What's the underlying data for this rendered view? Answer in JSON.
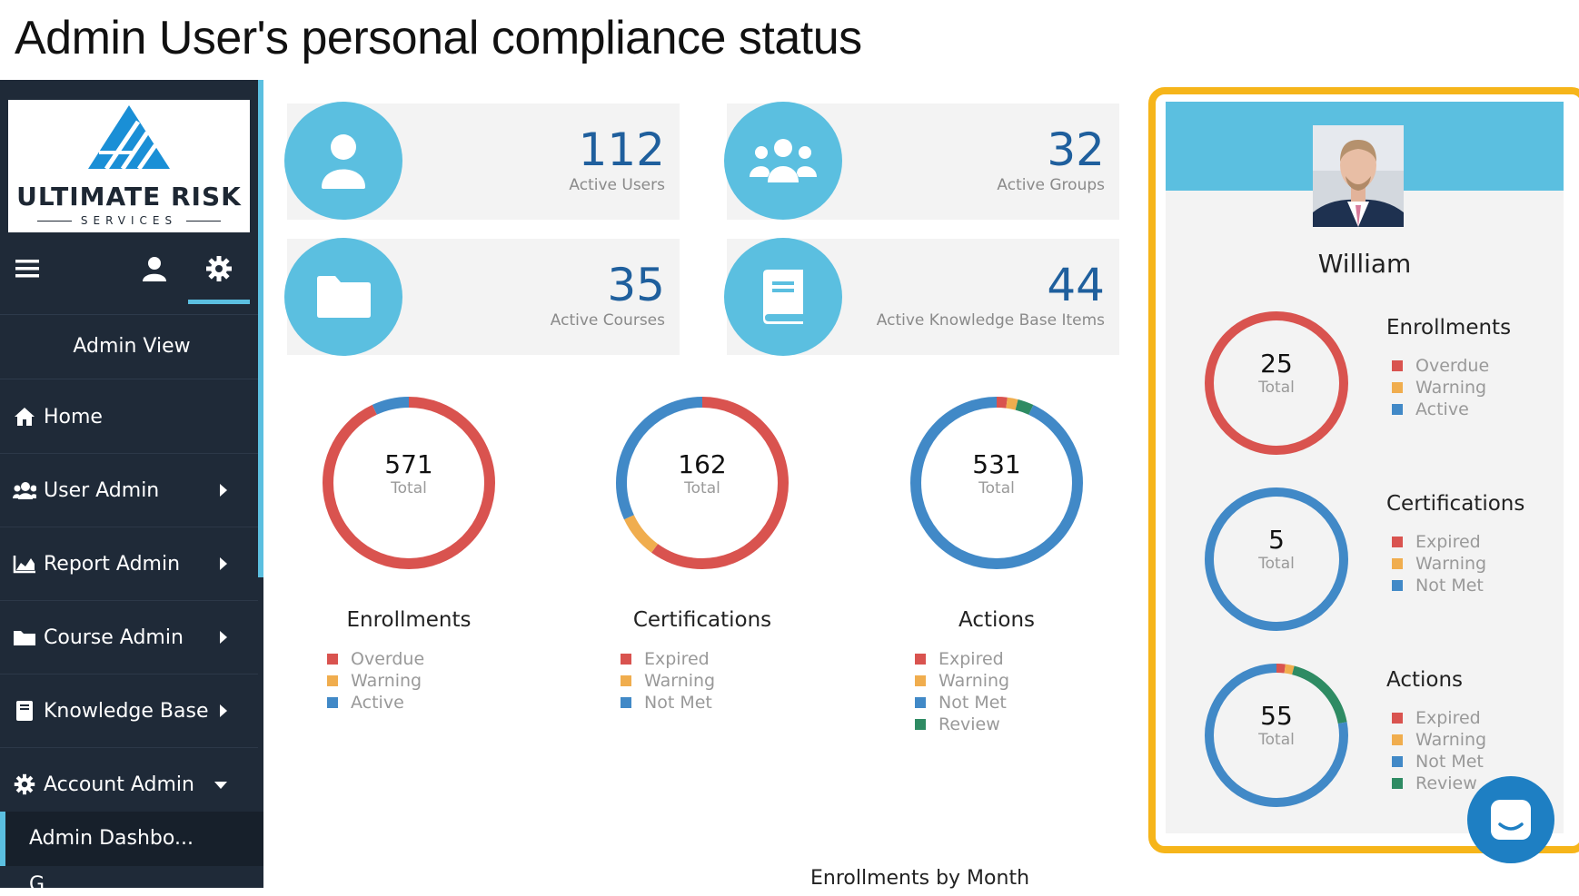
{
  "slide_title": "Admin User's personal compliance status",
  "sidebar": {
    "logo": {
      "name": "ULTIMATE RISK",
      "sub": "SERVICES"
    },
    "toolbar": {
      "menu_icon": "hamburger-icon",
      "user_icon": "user-icon",
      "settings_icon": "gear-icon",
      "active": "settings"
    },
    "view_label": "Admin View",
    "items": [
      {
        "label": "Home",
        "icon": "home-icon"
      },
      {
        "label": "User Admin",
        "icon": "users-icon",
        "arrow": "right"
      },
      {
        "label": "Report Admin",
        "icon": "chart-icon",
        "arrow": "right"
      },
      {
        "label": "Course Admin",
        "icon": "folder-icon",
        "arrow": "right"
      },
      {
        "label": "Knowledge Base",
        "icon": "book-icon",
        "arrow": "right"
      },
      {
        "label": "Account Admin",
        "icon": "gear-icon",
        "arrow": "down"
      }
    ],
    "sub_item": "Admin Dashbo...",
    "next_item": "G..."
  },
  "stats": [
    {
      "value": "112",
      "label": "Active Users",
      "icon": "user-icon"
    },
    {
      "value": "32",
      "label": "Active Groups",
      "icon": "group-icon"
    },
    {
      "value": "35",
      "label": "Active Courses",
      "icon": "folder-icon"
    },
    {
      "value": "44",
      "label": "Active Knowledge Base Items",
      "icon": "book-icon"
    }
  ],
  "colors": {
    "red": "#d9534f",
    "orange": "#f0ad4e",
    "blue": "#4189c7",
    "green": "#2e8b63",
    "accent": "#5bbfe0",
    "highlight": "#f6b51a"
  },
  "donuts": [
    {
      "title": "Enrollments",
      "total": "571",
      "total_label": "Total",
      "legend": [
        "Overdue",
        "Warning",
        "Active"
      ],
      "segments": [
        {
          "key": "Overdue",
          "fraction": 0.93
        },
        {
          "key": "Active",
          "fraction": 0.07
        }
      ]
    },
    {
      "title": "Certifications",
      "total": "162",
      "total_label": "Total",
      "legend": [
        "Expired",
        "Warning",
        "Not Met"
      ],
      "segments": [
        {
          "key": "Expired",
          "fraction": 0.6
        },
        {
          "key": "Warning",
          "fraction": 0.08
        },
        {
          "key": "Not Met",
          "fraction": 0.32
        }
      ]
    },
    {
      "title": "Actions",
      "total": "531",
      "total_label": "Total",
      "legend": [
        "Expired",
        "Warning",
        "Not Met",
        "Review"
      ],
      "segments": [
        {
          "key": "Expired",
          "fraction": 0.02
        },
        {
          "key": "Warning",
          "fraction": 0.02
        },
        {
          "key": "Review",
          "fraction": 0.03
        },
        {
          "key": "Not Met",
          "fraction": 0.93
        }
      ]
    }
  ],
  "profile": {
    "name": "William",
    "donuts": [
      {
        "title": "Enrollments",
        "total": "25",
        "total_label": "Total",
        "legend": [
          "Overdue",
          "Warning",
          "Active"
        ],
        "segments": [
          {
            "key": "Overdue",
            "fraction": 1.0
          }
        ]
      },
      {
        "title": "Certifications",
        "total": "5",
        "total_label": "Total",
        "legend": [
          "Expired",
          "Warning",
          "Not Met"
        ],
        "segments": [
          {
            "key": "Not Met",
            "fraction": 1.0
          }
        ]
      },
      {
        "title": "Actions",
        "total": "55",
        "total_label": "Total",
        "legend": [
          "Expired",
          "Warning",
          "Not Met",
          "Review"
        ],
        "segments": [
          {
            "key": "Expired",
            "fraction": 0.02
          },
          {
            "key": "Warning",
            "fraction": 0.02
          },
          {
            "key": "Review",
            "fraction": 0.18
          },
          {
            "key": "Not Met",
            "fraction": 0.78
          }
        ]
      }
    ]
  },
  "bottom_section_title": "Enrollments by Month",
  "chat": {
    "icon": "chat-icon"
  }
}
